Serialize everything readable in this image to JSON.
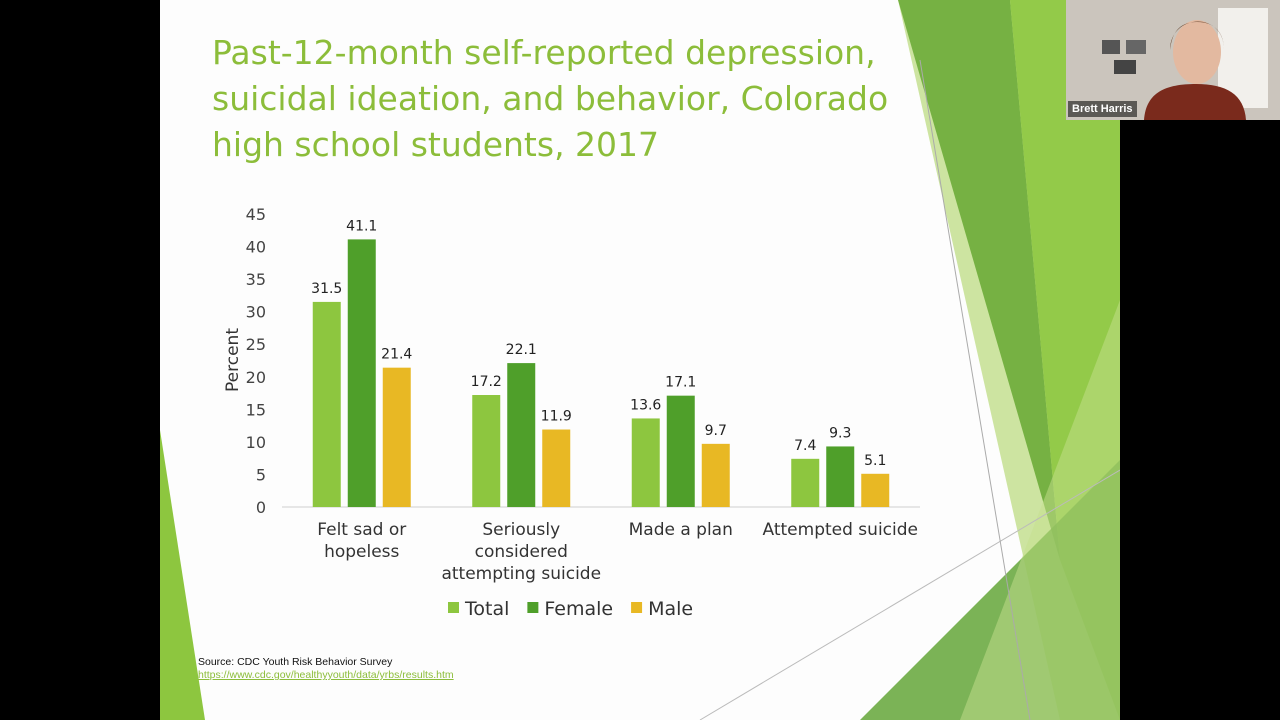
{
  "slide": {
    "title": "Past-12-month self-reported depression, suicidal ideation, and behavior, Colorado high school students, 2017",
    "source_text": "Source: CDC Youth Risk Behavior Survey",
    "source_url": "https://www.cdc.gov/healthyyouth/data/yrbs/results.htm"
  },
  "webcam": {
    "participant_name": "Brett Harris"
  },
  "colors": {
    "total": "#8dc63f",
    "female": "#4f9f2a",
    "male": "#e8b824",
    "title": "#8cbd3a"
  },
  "chart_data": {
    "type": "bar",
    "title": "Past-12-month self-reported depression, suicidal ideation, and behavior, Colorado high school students, 2017",
    "ylabel": "Percent",
    "xlabel": "",
    "ylim": [
      0,
      45
    ],
    "yticks": [
      0,
      5,
      10,
      15,
      20,
      25,
      30,
      35,
      40,
      45
    ],
    "categories": [
      [
        "Felt sad or",
        "hopeless"
      ],
      [
        "Seriously",
        "considered",
        "attempting suicide"
      ],
      [
        "Made a plan"
      ],
      [
        "Attempted suicide"
      ]
    ],
    "series": [
      {
        "name": "Total",
        "color": "#8dc63f",
        "values": [
          31.5,
          17.2,
          13.6,
          7.4
        ]
      },
      {
        "name": "Female",
        "color": "#4f9f2a",
        "values": [
          41.1,
          22.1,
          17.1,
          9.3
        ]
      },
      {
        "name": "Male",
        "color": "#e8b824",
        "values": [
          21.4,
          11.9,
          9.7,
          5.1
        ]
      }
    ],
    "grid": false,
    "legend_position": "bottom"
  }
}
